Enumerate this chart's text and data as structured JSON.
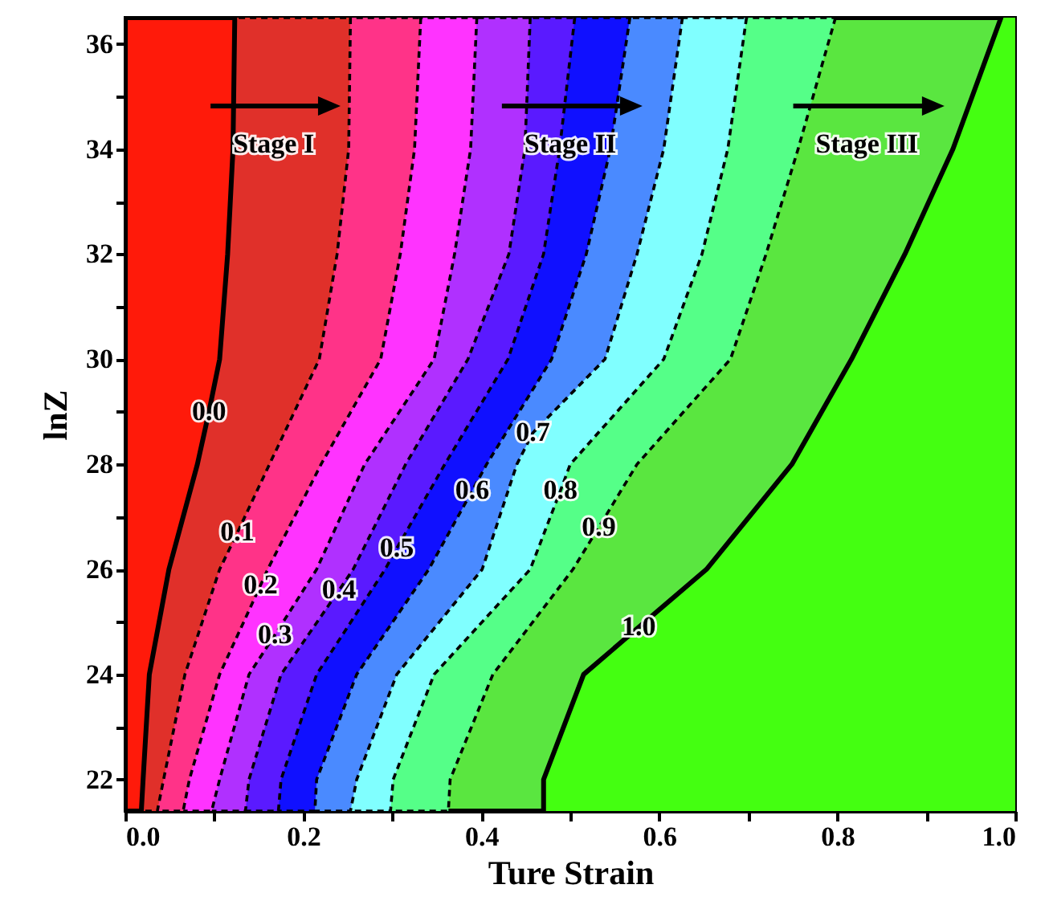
{
  "chart_data": {
    "type": "area",
    "orientation": "horizontal",
    "xlabel": "Ture Strain",
    "ylabel": "lnZ",
    "xlim": [
      0,
      1
    ],
    "ylim": [
      21.4,
      36.5
    ],
    "xticks": [
      {
        "value": 0,
        "label": "0.0"
      },
      {
        "value": 0.1,
        "label": null
      },
      {
        "value": 0.2,
        "label": "0.2"
      },
      {
        "value": 0.3,
        "label": null
      },
      {
        "value": 0.4,
        "label": "0.4"
      },
      {
        "value": 0.5,
        "label": null
      },
      {
        "value": 0.6,
        "label": "0.6"
      },
      {
        "value": 0.7,
        "label": null
      },
      {
        "value": 0.8,
        "label": "0.8"
      },
      {
        "value": 0.9,
        "label": null
      },
      {
        "value": 1,
        "label": "1.0"
      }
    ],
    "yticks": [
      22,
      {
        "value": 23,
        "label": null
      },
      24,
      {
        "value": 25,
        "label": null
      },
      26,
      {
        "value": 27,
        "label": null
      },
      28,
      {
        "value": 29,
        "label": null
      },
      30,
      {
        "value": 31,
        "label": null
      },
      32,
      {
        "value": 33,
        "label": null
      },
      34,
      {
        "value": 35,
        "label": null
      },
      36
    ],
    "series": [
      {
        "color": "#ff1a0a",
        "line_style": "solid",
        "values": [
          0.123,
          0.121,
          0.115,
          0.106,
          0.094,
          0.081,
          0.049,
          0.027,
          0.02,
          0.018
        ],
        "x": [
          36.5,
          34,
          32,
          30,
          29,
          28,
          26,
          24,
          22,
          21.4
        ]
      },
      {
        "color": "#e0302a",
        "line_style": "dashed",
        "values": [
          0.253,
          0.251,
          0.238,
          0.218,
          0.162,
          0.126,
          0.106,
          0.067,
          0.043,
          0.036
        ],
        "x": [
          36.5,
          34,
          32,
          30,
          28,
          26.7,
          26,
          24,
          22,
          21.4
        ]
      },
      {
        "color": "#ff3388",
        "line_style": "dashed",
        "values": [
          0.332,
          0.325,
          0.309,
          0.287,
          0.22,
          0.16,
          0.152,
          0.106,
          0.072,
          0.065
        ],
        "x": [
          36.5,
          34,
          32,
          30,
          28,
          26,
          25.7,
          24,
          22,
          21.4
        ]
      },
      {
        "color": "#ff33ff",
        "line_style": "dashed",
        "values": [
          0.395,
          0.388,
          0.37,
          0.347,
          0.269,
          0.215,
          0.168,
          0.139,
          0.106,
          0.097
        ],
        "x": [
          36.5,
          34,
          32,
          30,
          28,
          26,
          24.75,
          24,
          22,
          21.4
        ]
      },
      {
        "color": "#b030ff",
        "line_style": "dashed",
        "values": [
          0.455,
          0.449,
          0.431,
          0.385,
          0.315,
          0.256,
          0.24,
          0.175,
          0.139,
          0.135
        ],
        "x": [
          36.5,
          34,
          32,
          30,
          28,
          26,
          25.6,
          24,
          22,
          21.4
        ]
      },
      {
        "color": "#5a1aff",
        "line_style": "dashed",
        "values": [
          0.505,
          0.488,
          0.47,
          0.43,
          0.359,
          0.305,
          0.292,
          0.215,
          0.175,
          0.172
        ],
        "x": [
          36.5,
          34,
          32,
          30,
          28,
          26.4,
          26,
          24,
          22,
          21.4
        ]
      },
      {
        "color": "#1010ff",
        "line_style": "dashed",
        "values": [
          0.567,
          0.545,
          0.518,
          0.479,
          0.406,
          0.39,
          0.341,
          0.26,
          0.215,
          0.213
        ],
        "x": [
          36.5,
          34,
          32,
          30,
          28,
          27.5,
          26,
          24,
          22,
          21.4
        ]
      },
      {
        "color": "#4a8aff",
        "line_style": "dashed",
        "values": [
          0.626,
          0.605,
          0.575,
          0.539,
          0.458,
          0.44,
          0.401,
          0.305,
          0.26,
          0.253
        ],
        "x": [
          36.5,
          34,
          32,
          30,
          28.6,
          28,
          26,
          24,
          22,
          21.4
        ]
      },
      {
        "color": "#80ffff",
        "line_style": "dashed",
        "values": [
          0.698,
          0.677,
          0.648,
          0.605,
          0.5,
          0.489,
          0.455,
          0.347,
          0.301,
          0.298
        ],
        "x": [
          36.5,
          34,
          32,
          30,
          28,
          27.5,
          26,
          24,
          22,
          21.4
        ]
      },
      {
        "color": "#55ff88",
        "line_style": "dashed",
        "values": [
          0.798,
          0.756,
          0.72,
          0.68,
          0.575,
          0.532,
          0.503,
          0.413,
          0.365,
          0.363
        ],
        "x": [
          36.5,
          34,
          32,
          30,
          28,
          26.8,
          26,
          24,
          22,
          21.4
        ]
      },
      {
        "color": "#5ae640",
        "line_style": "solid",
        "values": [
          0.984,
          0.93,
          0.876,
          0.816,
          0.749,
          0.653,
          0.577,
          0.515,
          0.47,
          0.47
        ],
        "x": [
          36.5,
          34,
          32,
          30,
          28,
          26,
          24.9,
          24,
          22,
          21.4
        ]
      }
    ],
    "bands": [
      {
        "axis": "x",
        "from": 0,
        "to": 1,
        "color": "#44ff11"
      }
    ],
    "annotations": [
      {
        "text": "0.0",
        "x": 0.094,
        "y": 29
      },
      {
        "text": "0.1",
        "x": 0.126,
        "y": 26.7
      },
      {
        "text": "0.2",
        "x": 0.152,
        "y": 25.7
      },
      {
        "text": "0.3",
        "x": 0.168,
        "y": 24.75
      },
      {
        "text": "0.4",
        "x": 0.24,
        "y": 25.6
      },
      {
        "text": "0.5",
        "x": 0.305,
        "y": 26.4
      },
      {
        "text": "0.6",
        "x": 0.39,
        "y": 27.5
      },
      {
        "text": "0.7",
        "x": 0.458,
        "y": 28.6
      },
      {
        "text": "0.8",
        "x": 0.489,
        "y": 27.5
      },
      {
        "text": "0.9",
        "x": 0.532,
        "y": 26.8
      },
      {
        "text": "1.0",
        "x": 0.577,
        "y": 24.9
      },
      "Stage I",
      "Stage II",
      "Stage III"
    ]
  }
}
